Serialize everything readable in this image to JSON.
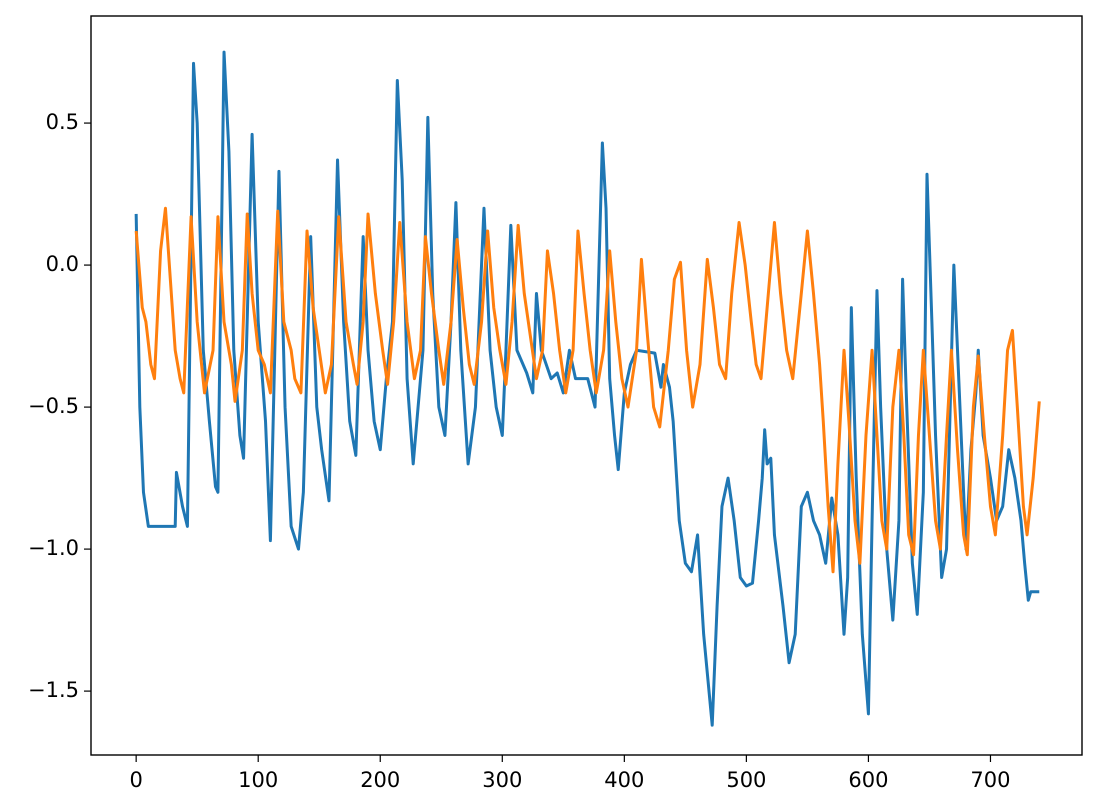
{
  "chart_data": {
    "type": "line",
    "xlim": [
      -37,
      775
    ],
    "ylim": [
      -1.725,
      0.877
    ],
    "xticks": [
      0,
      100,
      200,
      300,
      400,
      500,
      600,
      700
    ],
    "yticks": [
      {
        "value": -1.5,
        "label": "−1.5"
      },
      {
        "value": -1.0,
        "label": "−1.0"
      },
      {
        "value": -0.5,
        "label": "−0.5"
      },
      {
        "value": 0.0,
        "label": "0.0"
      },
      0.5
    ],
    "series": [
      {
        "color": "#1f77b4",
        "x": [
          0,
          3,
          6,
          10,
          32,
          33,
          38,
          42,
          47,
          50,
          55,
          60,
          65,
          67,
          72,
          76,
          80,
          85,
          88,
          95,
          100,
          106,
          110,
          117,
          122,
          127,
          133,
          137,
          143,
          148,
          152,
          158,
          165,
          170,
          175,
          180,
          186,
          190,
          195,
          200,
          205,
          210,
          214,
          218,
          222,
          227,
          235,
          239,
          243,
          248,
          253,
          258,
          262,
          266,
          272,
          278,
          282,
          285,
          290,
          295,
          300,
          303,
          307,
          312,
          320,
          325,
          328,
          332,
          340,
          345,
          350,
          355,
          360,
          370,
          376,
          382,
          385,
          388,
          392,
          395,
          400,
          405,
          410,
          425,
          430,
          432,
          437,
          440,
          445,
          450,
          455,
          460,
          465,
          472,
          476,
          480,
          485,
          490,
          495,
          500,
          505,
          510,
          513,
          515,
          517,
          520,
          523,
          530,
          535,
          540,
          545,
          550,
          555,
          560,
          565,
          570,
          575,
          580,
          583,
          586,
          590,
          595,
          600,
          603,
          607,
          610,
          615,
          620,
          625,
          628,
          631,
          636,
          640,
          645,
          648,
          652,
          655,
          660,
          664,
          670,
          675,
          680,
          684,
          688,
          690,
          694,
          700,
          705,
          710,
          715,
          720,
          725,
          728,
          731,
          733,
          740
        ],
        "values": [
          0.18,
          -0.5,
          -0.8,
          -0.92,
          -0.92,
          -0.73,
          -0.85,
          -0.92,
          0.71,
          0.5,
          -0.3,
          -0.55,
          -0.78,
          -0.8,
          0.75,
          0.4,
          -0.3,
          -0.6,
          -0.68,
          0.46,
          -0.2,
          -0.55,
          -0.97,
          0.33,
          -0.5,
          -0.92,
          -1.0,
          -0.8,
          0.1,
          -0.5,
          -0.65,
          -0.83,
          0.37,
          -0.2,
          -0.55,
          -0.67,
          0.1,
          -0.3,
          -0.55,
          -0.65,
          -0.4,
          -0.2,
          0.65,
          0.3,
          -0.4,
          -0.7,
          -0.3,
          0.52,
          -0.1,
          -0.5,
          -0.6,
          -0.2,
          0.22,
          -0.3,
          -0.7,
          -0.5,
          -0.1,
          0.2,
          -0.3,
          -0.5,
          -0.6,
          -0.3,
          0.14,
          -0.3,
          -0.38,
          -0.45,
          -0.1,
          -0.3,
          -0.4,
          -0.38,
          -0.45,
          -0.3,
          -0.4,
          -0.4,
          -0.5,
          0.43,
          0.2,
          -0.4,
          -0.6,
          -0.72,
          -0.45,
          -0.35,
          -0.3,
          -0.31,
          -0.43,
          -0.35,
          -0.43,
          -0.55,
          -0.9,
          -1.05,
          -1.08,
          -0.95,
          -1.3,
          -1.62,
          -1.2,
          -0.85,
          -0.75,
          -0.9,
          -1.1,
          -1.13,
          -1.12,
          -0.9,
          -0.75,
          -0.58,
          -0.7,
          -0.68,
          -0.95,
          -1.2,
          -1.4,
          -1.3,
          -0.85,
          -0.8,
          -0.9,
          -0.95,
          -1.05,
          -0.82,
          -0.95,
          -1.3,
          -1.1,
          -0.15,
          -0.75,
          -1.3,
          -1.58,
          -0.9,
          -0.09,
          -0.5,
          -1.0,
          -1.25,
          -0.9,
          -0.05,
          -0.45,
          -1.05,
          -1.23,
          -0.8,
          0.32,
          -0.2,
          -0.6,
          -1.1,
          -1.0,
          0.0,
          -0.5,
          -1.0,
          -0.65,
          -0.45,
          -0.3,
          -0.6,
          -0.75,
          -0.9,
          -0.85,
          -0.65,
          -0.75,
          -0.9,
          -1.05,
          -1.18,
          -1.15,
          -1.15
        ]
      },
      {
        "color": "#ff7f0e",
        "x": [
          0,
          5,
          8,
          12,
          15,
          20,
          24,
          28,
          32,
          36,
          39,
          45,
          50,
          56,
          63,
          67,
          72,
          78,
          81,
          87,
          91,
          95,
          100,
          105,
          110,
          116,
          121,
          127,
          130,
          135,
          140,
          145,
          150,
          155,
          160,
          166,
          172,
          178,
          181,
          186,
          190,
          196,
          202,
          206,
          211,
          216,
          222,
          228,
          233,
          237,
          242,
          248,
          252,
          258,
          263,
          268,
          273,
          277,
          283,
          288,
          293,
          298,
          303,
          308,
          313,
          318,
          323,
          328,
          333,
          337,
          342,
          347,
          352,
          358,
          362,
          367,
          372,
          377,
          383,
          388,
          393,
          398,
          403,
          410,
          414,
          419,
          424,
          429,
          436,
          441,
          446,
          451,
          456,
          462,
          468,
          473,
          478,
          483,
          488,
          494,
          499,
          504,
          508,
          512,
          518,
          523,
          528,
          533,
          538,
          545,
          550,
          555,
          560,
          563,
          567,
          571,
          575,
          580,
          584,
          589,
          593,
          598,
          603,
          607,
          611,
          615,
          620,
          625,
          629,
          633,
          637,
          641,
          645,
          650,
          655,
          659,
          664,
          668,
          673,
          678,
          681,
          686,
          690,
          695,
          700,
          704,
          710,
          714,
          718,
          722,
          727,
          730,
          735,
          740
        ],
        "values": [
          0.12,
          -0.15,
          -0.2,
          -0.35,
          -0.4,
          0.05,
          0.2,
          -0.05,
          -0.3,
          -0.4,
          -0.45,
          0.17,
          -0.2,
          -0.45,
          -0.3,
          0.17,
          -0.2,
          -0.35,
          -0.48,
          -0.3,
          0.18,
          -0.1,
          -0.3,
          -0.35,
          -0.45,
          0.19,
          -0.2,
          -0.3,
          -0.4,
          -0.45,
          0.12,
          -0.15,
          -0.3,
          -0.45,
          -0.35,
          0.17,
          -0.2,
          -0.35,
          -0.42,
          -0.2,
          0.18,
          -0.1,
          -0.3,
          -0.42,
          -0.2,
          0.15,
          -0.2,
          -0.4,
          -0.3,
          0.1,
          -0.1,
          -0.3,
          -0.42,
          -0.2,
          0.09,
          -0.15,
          -0.35,
          -0.42,
          -0.2,
          0.12,
          -0.15,
          -0.3,
          -0.42,
          -0.2,
          0.14,
          -0.1,
          -0.25,
          -0.4,
          -0.3,
          0.05,
          -0.1,
          -0.3,
          -0.45,
          -0.3,
          0.12,
          -0.1,
          -0.3,
          -0.45,
          -0.3,
          0.05,
          -0.2,
          -0.4,
          -0.5,
          -0.3,
          0.02,
          -0.25,
          -0.5,
          -0.57,
          -0.3,
          -0.05,
          0.01,
          -0.3,
          -0.5,
          -0.35,
          0.02,
          -0.15,
          -0.35,
          -0.4,
          -0.1,
          0.15,
          0.0,
          -0.2,
          -0.35,
          -0.4,
          -0.1,
          0.15,
          -0.1,
          -0.3,
          -0.4,
          -0.1,
          0.12,
          -0.1,
          -0.35,
          -0.55,
          -0.85,
          -1.08,
          -0.7,
          -0.3,
          -0.55,
          -0.9,
          -1.05,
          -0.6,
          -0.3,
          -0.6,
          -0.9,
          -1.0,
          -0.5,
          -0.3,
          -0.6,
          -0.95,
          -1.02,
          -0.6,
          -0.3,
          -0.6,
          -0.9,
          -1.0,
          -0.6,
          -0.3,
          -0.65,
          -0.95,
          -1.02,
          -0.5,
          -0.32,
          -0.6,
          -0.85,
          -0.95,
          -0.6,
          -0.3,
          -0.23,
          -0.5,
          -0.85,
          -0.95,
          -0.75,
          -0.48
        ]
      }
    ]
  }
}
